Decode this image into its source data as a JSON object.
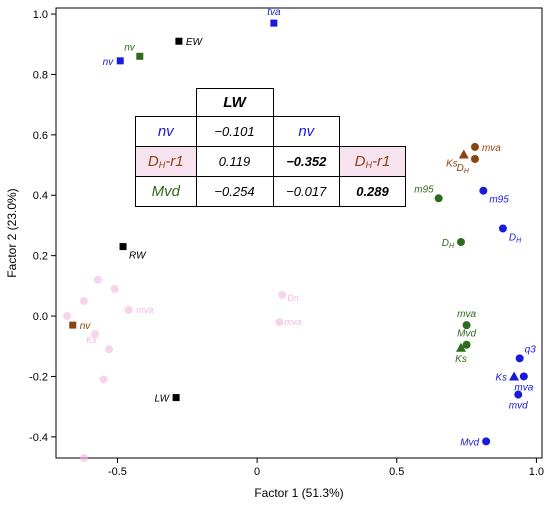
{
  "chart_data": {
    "type": "scatter",
    "xlabel": "Factor 1 (51.3%)",
    "ylabel": "Factor 2 (23.0%)",
    "xlim": [
      -0.72,
      1.02
    ],
    "ylim": [
      -0.47,
      1.02
    ],
    "xticks": [
      -0.5,
      0.0,
      0.5,
      1.0
    ],
    "xtick_labels": [
      "-0.5",
      "0",
      "0.5",
      "1.0"
    ],
    "yticks": [
      -0.4,
      -0.2,
      0.0,
      0.2,
      0.4,
      0.6,
      0.8,
      1.0
    ],
    "ytick_labels": [
      "-0.4",
      "-0.2",
      "0.0",
      "0.2",
      "0.4",
      "0.6",
      "0.8",
      "1.0"
    ],
    "colors": {
      "black": "#000000",
      "blue": "#1a1adb",
      "green": "#2e6b1e",
      "brown": "#8b4513",
      "ghost": "#f2b8e0"
    },
    "points": [
      {
        "label": "EW",
        "x": -0.28,
        "y": 0.91,
        "color": "black",
        "shape": "square",
        "anchor": "right"
      },
      {
        "label": "RW",
        "x": -0.48,
        "y": 0.23,
        "color": "black",
        "shape": "square",
        "anchor": "below-right"
      },
      {
        "label": "LW",
        "x": -0.29,
        "y": -0.27,
        "color": "black",
        "shape": "square",
        "anchor": "left"
      },
      {
        "label": "tva",
        "x": 0.06,
        "y": 0.97,
        "color": "blue",
        "shape": "square",
        "anchor": "above"
      },
      {
        "label": "nv",
        "x": -0.49,
        "y": 0.845,
        "color": "blue",
        "shape": "square",
        "anchor": "left"
      },
      {
        "label": "nv",
        "x": -0.42,
        "y": 0.86,
        "color": "green",
        "shape": "square",
        "anchor": "above-left"
      },
      {
        "label": "nv",
        "x": -0.66,
        "y": -0.03,
        "color": "brown",
        "shape": "square",
        "anchor": "right"
      },
      {
        "label": "mva",
        "x": 0.78,
        "y": 0.56,
        "color": "brown",
        "shape": "circle",
        "anchor": "right"
      },
      {
        "label": "DH",
        "x": 0.78,
        "y": 0.52,
        "color": "brown",
        "shape": "circle",
        "anchor": "below-left"
      },
      {
        "label": "Ks",
        "x": 0.74,
        "y": 0.535,
        "color": "brown",
        "shape": "triangle",
        "anchor": "below-left"
      },
      {
        "label": "m95",
        "x": 0.65,
        "y": 0.39,
        "color": "green",
        "shape": "circle",
        "anchor": "above-left"
      },
      {
        "label": "m95",
        "x": 0.81,
        "y": 0.415,
        "color": "blue",
        "shape": "circle",
        "anchor": "below-right"
      },
      {
        "label": "DH",
        "x": 0.73,
        "y": 0.245,
        "color": "green",
        "shape": "circle",
        "anchor": "left"
      },
      {
        "label": "DH",
        "x": 0.88,
        "y": 0.29,
        "color": "blue",
        "shape": "circle",
        "anchor": "below-right"
      },
      {
        "label": "mva",
        "x": 0.75,
        "y": -0.03,
        "color": "green",
        "shape": "circle",
        "anchor": "above"
      },
      {
        "label": "Mvd",
        "x": 0.75,
        "y": -0.095,
        "color": "green",
        "shape": "circle",
        "anchor": "above"
      },
      {
        "label": "Ks",
        "x": 0.73,
        "y": -0.105,
        "color": "green",
        "shape": "triangle",
        "anchor": "below"
      },
      {
        "label": "q3",
        "x": 0.94,
        "y": -0.14,
        "color": "blue",
        "shape": "circle",
        "anchor": "above-right"
      },
      {
        "label": "Ks",
        "x": 0.92,
        "y": -0.2,
        "color": "blue",
        "shape": "triangle",
        "anchor": "left"
      },
      {
        "label": "mva",
        "x": 0.955,
        "y": -0.2,
        "color": "blue",
        "shape": "circle",
        "anchor": "below"
      },
      {
        "label": "mvd",
        "x": 0.935,
        "y": -0.26,
        "color": "blue",
        "shape": "circle",
        "anchor": "below"
      },
      {
        "label": "Mvd",
        "x": 0.82,
        "y": -0.415,
        "color": "blue",
        "shape": "circle",
        "anchor": "left"
      }
    ],
    "ghost_points": [
      {
        "x": -0.57,
        "y": 0.12
      },
      {
        "x": -0.51,
        "y": 0.09
      },
      {
        "x": -0.62,
        "y": 0.05
      },
      {
        "x": -0.46,
        "y": 0.02
      },
      {
        "x": -0.68,
        "y": 0.0
      },
      {
        "x": -0.58,
        "y": -0.06
      },
      {
        "x": -0.53,
        "y": -0.11
      },
      {
        "x": 0.09,
        "y": 0.07
      },
      {
        "x": 0.08,
        "y": -0.02
      },
      {
        "x": -0.55,
        "y": -0.21
      },
      {
        "x": -0.62,
        "y": -0.47
      }
    ],
    "ghost_labels": [
      {
        "text": "mva",
        "x": -0.45,
        "y": 0.02
      },
      {
        "text": "Ks",
        "x": -0.63,
        "y": -0.08
      },
      {
        "text": "Dn",
        "x": 0.09,
        "y": 0.06
      },
      {
        "text": "mva",
        "x": 0.08,
        "y": -0.02
      }
    ]
  },
  "table": {
    "header": "LW",
    "rows": [
      {
        "row_label": "nv",
        "row_label_sub": "",
        "color": "blue",
        "values": [
          "−0.101",
          "nv",
          "",
          ""
        ]
      },
      {
        "row_label": "D",
        "row_label_sub": "H",
        "row_label_suffix": "-r1",
        "color": "brown",
        "values": [
          "0.119",
          "−0.352",
          "D",
          ""
        ]
      },
      {
        "row_label": "Mvd",
        "row_label_sub": "",
        "color": "green",
        "values": [
          "−0.254",
          "−0.017",
          "0.289",
          ""
        ]
      }
    ],
    "col2_header_label": "nv",
    "col3_header_label": "D",
    "col3_header_sub": "H",
    "col3_header_suffix": "-r1"
  }
}
